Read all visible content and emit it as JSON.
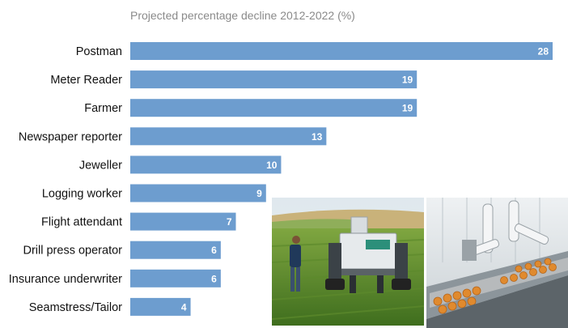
{
  "chart_data": {
    "type": "bar",
    "orientation": "horizontal",
    "title": "Projected percentage decline 2012-2022 (%)",
    "categories": [
      "Postman",
      "Meter Reader",
      "Farmer",
      "Newspaper reporter",
      "Jeweller",
      "Logging worker",
      "Flight attendant",
      "Drill press operator",
      "Insurance underwriter",
      "Seamstress/Tailor"
    ],
    "values": [
      28,
      19,
      19,
      13,
      10,
      9,
      7,
      6,
      6,
      4
    ],
    "value_labels": [
      "28",
      "19",
      "19",
      "13",
      "10",
      "9",
      "7",
      "6",
      "6",
      "4"
    ],
    "xlim": [
      0,
      28
    ],
    "grid": false,
    "bar_color": "#6d9dcf"
  },
  "images": {
    "left_photo": "farm-robot-photo",
    "right_photo": "factory-robot-arm-photo"
  }
}
